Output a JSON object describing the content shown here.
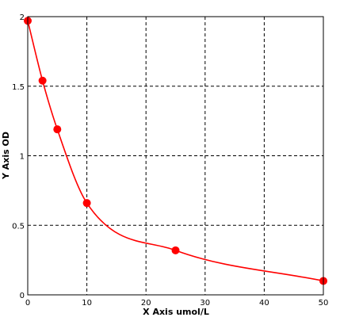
{
  "chart_data": {
    "type": "scatter",
    "title": "",
    "xlabel": "X Axis umol/L",
    "ylabel": "Y Axis OD",
    "xlim": [
      0,
      50
    ],
    "ylim": [
      0,
      2
    ],
    "x_ticks": [
      0,
      10,
      20,
      30,
      40,
      50
    ],
    "y_ticks": [
      0,
      0.5,
      1,
      1.5,
      2
    ],
    "x_tick_labels": [
      "0",
      "10",
      "20",
      "30",
      "40",
      "50"
    ],
    "y_tick_labels": [
      "0",
      "0.5",
      "1",
      "1.5",
      "2"
    ],
    "grid": true,
    "grid_style": "dashed",
    "legend": "none",
    "series": [
      {
        "points": [
          {
            "x": 0,
            "y": 1.97
          },
          {
            "x": 2.5,
            "y": 1.54
          },
          {
            "x": 5,
            "y": 1.19
          },
          {
            "x": 10,
            "y": 0.66
          },
          {
            "x": 25,
            "y": 0.32
          },
          {
            "x": 50,
            "y": 0.1
          }
        ],
        "color": "#ff0000",
        "fit_curve": true
      }
    ]
  }
}
